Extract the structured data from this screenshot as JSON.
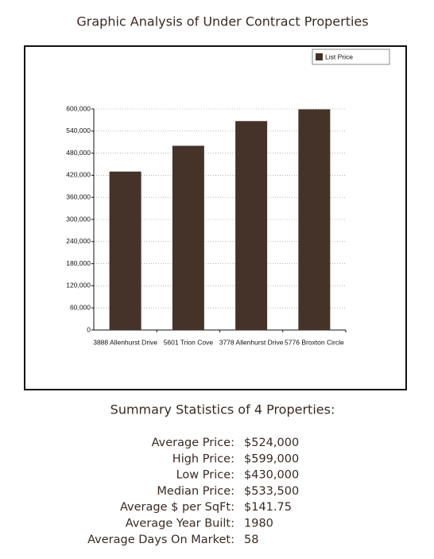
{
  "title": "Graphic Analysis of Under Contract Properties",
  "chart_data": {
    "type": "bar",
    "categories": [
      "3888 Allenhurst Drive",
      "5601 Trion Cove",
      "3778 Allenhurst Drive",
      "5776 Broxton Circle"
    ],
    "series": [
      {
        "name": "List Price",
        "color": "#45332a",
        "values": [
          430000,
          500000,
          567000,
          599000
        ]
      }
    ],
    "ylim": [
      0,
      600000
    ],
    "yticks": [
      0,
      {
        "value": 60000,
        "label": "60,000"
      },
      {
        "value": 120000,
        "label": "120,000"
      },
      {
        "value": 180000,
        "label": "180,000"
      },
      {
        "value": 240000,
        "label": "240,000"
      },
      {
        "value": 300000,
        "label": "300,000"
      },
      {
        "value": 360000,
        "label": "360,000"
      },
      {
        "value": 420000,
        "label": "420,000"
      },
      {
        "value": 480000,
        "label": "480,000"
      },
      {
        "value": 540000,
        "label": "540,000"
      },
      {
        "value": 600000,
        "label": "600,000"
      }
    ],
    "grid": true,
    "legend": "top-right"
  },
  "summary": {
    "title": "Summary Statistics of 4 Properties:",
    "rows": [
      [
        "Average Price:",
        "$524,000"
      ],
      [
        "High Price:",
        "$599,000"
      ],
      [
        "Low Price:",
        "$430,000"
      ],
      [
        "Median Price:",
        "$533,500"
      ],
      [
        "Average $ per SqFt:",
        "$141.75"
      ],
      [
        "Average Year Built:",
        "1980"
      ],
      [
        "Average Days On Market:",
        "58"
      ]
    ]
  }
}
